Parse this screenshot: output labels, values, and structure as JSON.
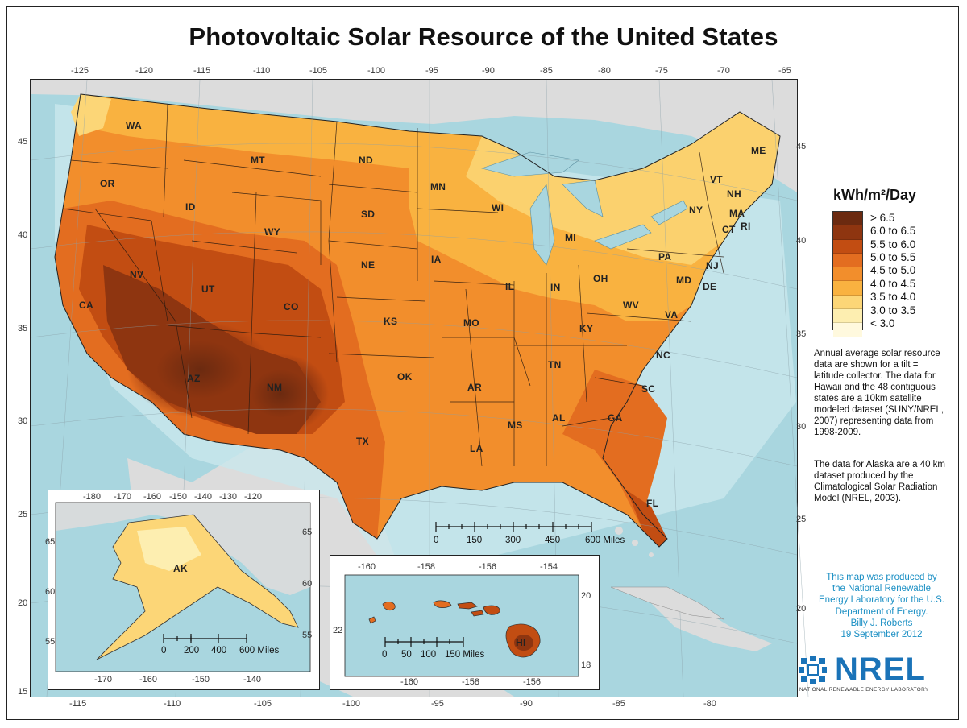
{
  "title": "Photovoltaic Solar Resource of the United States",
  "top_lon_ticks": [
    "-125",
    "-120",
    "-115",
    "-110",
    "-105",
    "-100",
    "-95",
    "-90",
    "-85",
    "-80",
    "-75",
    "-70",
    "-65"
  ],
  "bottom_lon_ticks": [
    "-115",
    "-110",
    "-105",
    "-100",
    "-95",
    "-90",
    "-85",
    "-80"
  ],
  "left_lat_ticks": [
    "45",
    "40",
    "35",
    "30",
    "25",
    "20",
    "15"
  ],
  "right_lat_ticks": [
    "45",
    "40",
    "35",
    "30",
    "25",
    "20"
  ],
  "states": [
    "WA",
    "OR",
    "CA",
    "NV",
    "ID",
    "MT",
    "WY",
    "UT",
    "AZ",
    "NM",
    "CO",
    "ND",
    "SD",
    "NE",
    "KS",
    "OK",
    "TX",
    "MN",
    "IA",
    "MO",
    "AR",
    "LA",
    "WI",
    "IL",
    "MI",
    "IN",
    "OH",
    "KY",
    "TN",
    "MS",
    "AL",
    "GA",
    "FL",
    "SC",
    "NC",
    "VA",
    "WV",
    "PA",
    "NY",
    "VT",
    "NH",
    "ME",
    "MA",
    "RI",
    "CT",
    "NJ",
    "DE",
    "MD"
  ],
  "legend": {
    "title": "kWh/m²/Day",
    "items": [
      {
        "label": "> 6.5",
        "color": "#6b2a10"
      },
      {
        "label": "6.0 to 6.5",
        "color": "#8e3510"
      },
      {
        "label": "5.5 to 6.0",
        "color": "#c24d12"
      },
      {
        "label": "5.0 to 5.5",
        "color": "#e36d20"
      },
      {
        "label": "4.5 to 5.0",
        "color": "#f28e2c"
      },
      {
        "label": "4.0 to 4.5",
        "color": "#f9b240"
      },
      {
        "label": "3.5 to 4.0",
        "color": "#fcd677"
      },
      {
        "label": "3.0 to 3.5",
        "color": "#fdeeb0"
      },
      {
        "label": "< 3.0",
        "color": "#fff9de"
      }
    ]
  },
  "description1": [
    "Annual average solar resource",
    "data are shown for a tilt =",
    "latitude collector.  The data for",
    "Hawaii and the 48 contiguous",
    "states are a 10km satellite",
    "modeled dataset (SUNY/NREL,",
    "2007) representing data from",
    "1998-2009."
  ],
  "description2": [
    "The data for Alaska are a 40 km",
    "dataset produced by the",
    "Climatological Solar Radiation",
    "Model (NREL, 2003)."
  ],
  "credit": [
    "This map was produced by",
    "the National Renewable",
    "Energy Laboratory for the U.S.",
    "Department of Energy.",
    "Billy J. Roberts",
    "19 September 2012"
  ],
  "main_scale": {
    "ticks": [
      "0",
      "150",
      "300",
      "450",
      "600 Miles"
    ]
  },
  "alaska": {
    "label": "AK",
    "top_ticks": [
      "-180",
      "-170",
      "-160",
      "-150",
      "-140",
      "-130",
      "-120"
    ],
    "bottom_ticks": [
      "-170",
      "-160",
      "-150",
      "-140"
    ],
    "left_ticks": [
      "65",
      "60",
      "55"
    ],
    "right_ticks": [
      "65",
      "60",
      "55"
    ],
    "scale_ticks": [
      "0",
      "200",
      "400",
      "600 Miles"
    ]
  },
  "hawaii": {
    "label": "HI",
    "top_ticks": [
      "-160",
      "-158",
      "-156",
      "-154"
    ],
    "bottom_ticks": [
      "-160",
      "-158",
      "-156"
    ],
    "left_ticks": [
      "22"
    ],
    "right_ticks": [
      "20",
      "18"
    ],
    "scale_ticks": [
      "0",
      "50",
      "100",
      "150 Miles"
    ]
  },
  "logo": {
    "text": "NREL",
    "tagline": "NATIONAL RENEWABLE ENERGY LABORATORY",
    "color": "#1a73b8"
  }
}
